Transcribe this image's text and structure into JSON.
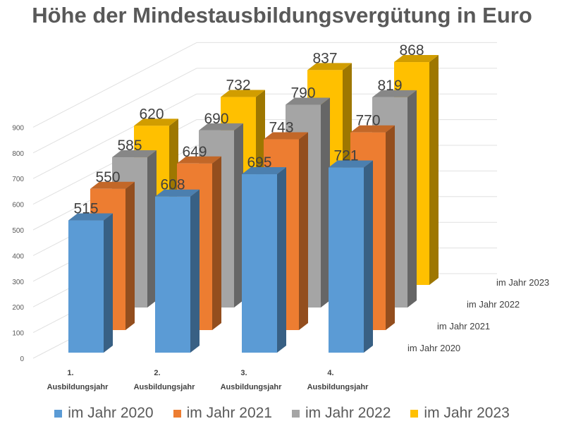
{
  "chart_data": {
    "type": "bar",
    "variant": "3d-column",
    "title": "Höhe der Mindestausbildungsvergütung in Euro",
    "categories": [
      "1. Ausbildungsjahr",
      "2. Ausbildungsjahr",
      "3. Ausbildungsjahr",
      "4. Ausbildungsjahr"
    ],
    "series": [
      {
        "name": "im Jahr 2020",
        "color": "#5B9BD5",
        "values": [
          515,
          608,
          695,
          721
        ]
      },
      {
        "name": "im Jahr 2021",
        "color": "#ED7D31",
        "values": [
          550,
          649,
          743,
          770
        ]
      },
      {
        "name": "im Jahr 2022",
        "color": "#A5A5A5",
        "values": [
          585,
          690,
          790,
          819
        ]
      },
      {
        "name": "im Jahr 2023",
        "color": "#FFC000",
        "values": [
          620,
          732,
          837,
          868
        ]
      }
    ],
    "ylim": [
      0,
      900
    ],
    "yticks": [
      "0",
      "100",
      "200",
      "300",
      "400",
      "500",
      "600",
      "700",
      "800",
      "900"
    ],
    "grid": true,
    "legend": "bottom",
    "data_labels": true
  }
}
